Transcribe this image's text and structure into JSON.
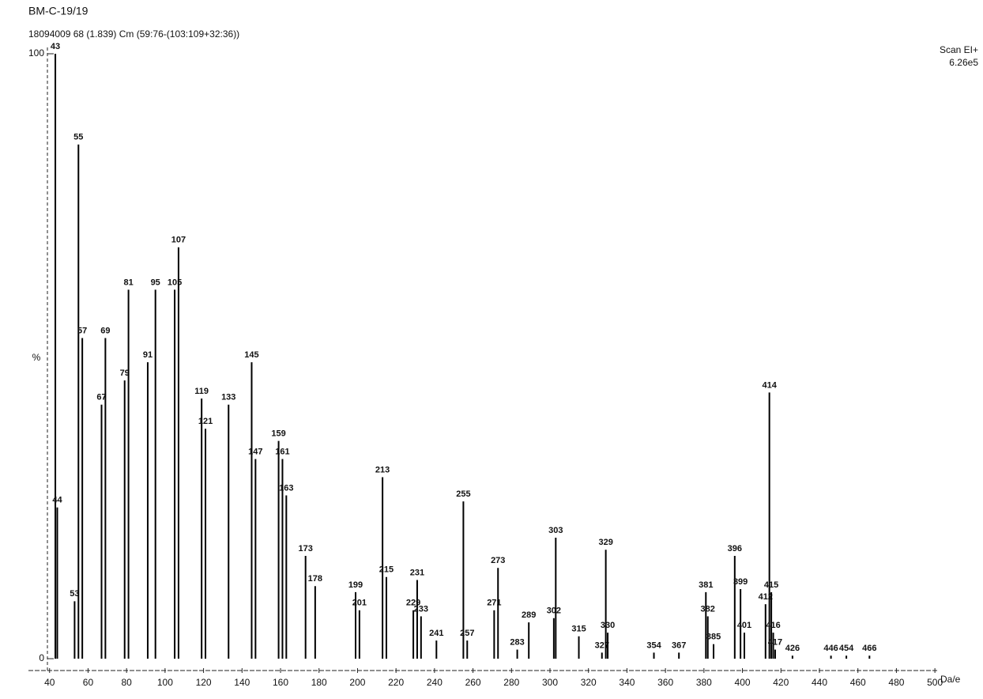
{
  "chart_data": {
    "type": "bar",
    "title": "BM-C-19/19",
    "subtitle": "18094009 68 (1.839) Cm (59:76-(103:109+32:36))",
    "scan_mode": "Scan EI+",
    "base_intensity": "6.26e5",
    "y_label": "%",
    "x_label": "Da/e",
    "color": "#000000",
    "x": [
      43,
      44,
      53,
      55,
      57,
      67,
      69,
      79,
      81,
      91,
      95,
      105,
      107,
      119,
      121,
      133,
      145,
      147,
      159,
      161,
      163,
      173,
      178,
      199,
      201,
      213,
      215,
      229,
      231,
      233,
      241,
      255,
      257,
      271,
      273,
      283,
      289,
      302,
      303,
      315,
      327,
      329,
      330,
      354,
      367,
      381,
      382,
      385,
      396,
      399,
      401,
      412,
      414,
      415,
      416,
      417,
      426,
      446,
      454,
      466
    ],
    "values": [
      100,
      25,
      9.5,
      85,
      53,
      42,
      53,
      46,
      61,
      49,
      61,
      61,
      68,
      43,
      38,
      42,
      49,
      33,
      36,
      33,
      27,
      17,
      12,
      11,
      8,
      30,
      13.5,
      8,
      13,
      7,
      3,
      26,
      3,
      8,
      15,
      1.5,
      6,
      6.7,
      20,
      3.7,
      1,
      18,
      4.3,
      1,
      1,
      11,
      7,
      2.4,
      17,
      11.5,
      4.3,
      9,
      44,
      11,
      4.3,
      1.5,
      0.5,
      0.5,
      0.5,
      0.5
    ],
    "xlim": [
      36,
      502
    ],
    "ylim": [
      0,
      100
    ],
    "xticks": [
      40,
      60,
      80,
      100,
      120,
      140,
      160,
      180,
      200,
      220,
      240,
      260,
      280,
      300,
      320,
      340,
      360,
      380,
      400,
      420,
      440,
      460,
      480,
      500
    ],
    "yticks": [
      0,
      100
    ]
  }
}
